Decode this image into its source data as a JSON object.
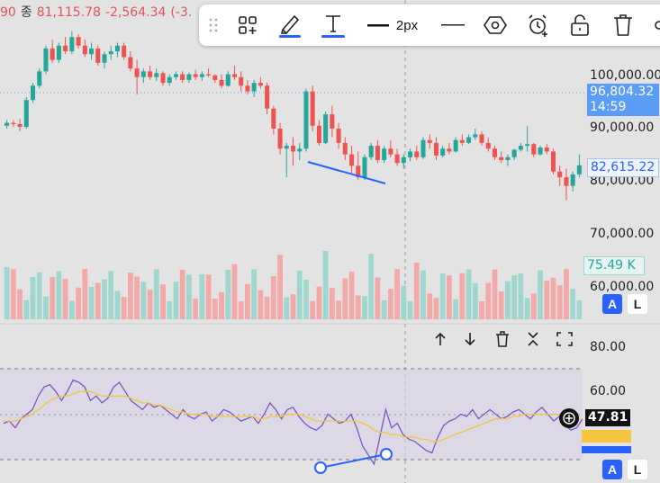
{
  "header": {
    "ohlc_partial": "90",
    "close_label": "종",
    "close_value": "81,115.78",
    "change_value": "-2,564.34",
    "change_pct_partial": "(-3."
  },
  "toolbar": {
    "width_label": "2px",
    "icons": [
      "drag-handle-icon",
      "add-layout-icon",
      "brush-icon",
      "text-tool-icon",
      "line-style-icon",
      "line-icon",
      "hexagon-icon",
      "alarm-add-icon",
      "unlock-icon",
      "trash-icon",
      "link-icon"
    ],
    "line_color": "#2962ff"
  },
  "price_axis": {
    "labels": [
      "100,000.00",
      "90,000.00",
      "80,000.00",
      "70,000.00",
      "60,000.00"
    ],
    "current_price": "96,804.32",
    "countdown": "14:59",
    "hover_price": "82,615.22",
    "volume_label": "75.49 K",
    "auto_label": "A",
    "log_label": "L"
  },
  "rsi_pane": {
    "axis_labels": [
      "80.00",
      "60.00"
    ],
    "current_value": "47.81",
    "buttons": [
      "move-up-icon",
      "move-down-icon",
      "delete-pane-icon",
      "collapse-pane-icon",
      "maximize-pane-icon"
    ],
    "auto_label": "A",
    "log_label": "L"
  },
  "colors": {
    "up": "#26a69a",
    "down": "#ef5350",
    "rsi_line": "#7e57c2",
    "rsi_ma": "#f5c542",
    "trend": "#2962ff",
    "band": "#d9d3e6"
  },
  "chart_data": {
    "type": "candlestick",
    "price_range": [
      60000,
      104000
    ],
    "candles": [
      [
        88000,
        89000,
        87500,
        88500
      ],
      [
        88500,
        89000,
        87800,
        88300
      ],
      [
        88300,
        89200,
        87000,
        87800
      ],
      [
        87800,
        93000,
        87500,
        92500
      ],
      [
        92500,
        95500,
        92000,
        95000
      ],
      [
        95000,
        98000,
        94500,
        97500
      ],
      [
        97500,
        102000,
        97000,
        101500
      ],
      [
        101500,
        103000,
        99000,
        99500
      ],
      [
        99500,
        102500,
        99000,
        102000
      ],
      [
        102000,
        103500,
        100500,
        101000
      ],
      [
        101000,
        104500,
        100500,
        103500
      ],
      [
        103500,
        104000,
        101500,
        102000
      ],
      [
        102000,
        103000,
        100000,
        100500
      ],
      [
        100500,
        102500,
        99500,
        101500
      ],
      [
        101500,
        102000,
        98500,
        99000
      ],
      [
        99000,
        101000,
        98000,
        100500
      ],
      [
        100500,
        102000,
        99500,
        101000
      ],
      [
        101000,
        102500,
        100000,
        102000
      ],
      [
        102000,
        102500,
        99500,
        100000
      ],
      [
        100000,
        101000,
        97500,
        98000
      ],
      [
        98000,
        99500,
        93500,
        96500
      ],
      [
        96500,
        98000,
        95500,
        97500
      ],
      [
        97500,
        98500,
        96000,
        96500
      ],
      [
        96500,
        98000,
        95800,
        97200
      ],
      [
        97200,
        97500,
        95000,
        95500
      ],
      [
        95500,
        97000,
        95000,
        96500
      ],
      [
        96500,
        97500,
        96000,
        97000
      ],
      [
        97000,
        97500,
        95500,
        96000
      ],
      [
        96000,
        97300,
        95500,
        97000
      ],
      [
        97000,
        97800,
        96000,
        96500
      ],
      [
        96500,
        97500,
        95800,
        97000
      ],
      [
        97000,
        98000,
        96500,
        96800
      ],
      [
        96800,
        97000,
        95500,
        96000
      ],
      [
        96000,
        97000,
        94500,
        95000
      ],
      [
        95000,
        97500,
        94800,
        97000
      ],
      [
        97000,
        98500,
        96000,
        96500
      ],
      [
        96500,
        97500,
        94000,
        95000
      ],
      [
        95000,
        96000,
        93500,
        94000
      ],
      [
        94000,
        96000,
        93000,
        95500
      ],
      [
        95500,
        96500,
        94500,
        95000
      ],
      [
        95000,
        95500,
        90000,
        91000
      ],
      [
        91000,
        91500,
        86500,
        87500
      ],
      [
        87500,
        88500,
        83000,
        84000
      ],
      [
        84000,
        85000,
        79000,
        84500
      ],
      [
        84500,
        86000,
        81000,
        83500
      ],
      [
        83500,
        85000,
        82000,
        84000
      ],
      [
        84000,
        94500,
        83500,
        94000
      ],
      [
        94000,
        95000,
        87000,
        88000
      ],
      [
        88000,
        89000,
        84500,
        85000
      ],
      [
        85000,
        90500,
        84800,
        90000
      ],
      [
        90000,
        91500,
        86000,
        87500
      ],
      [
        87500,
        88500,
        84000,
        85000
      ],
      [
        85000,
        86000,
        82000,
        83000
      ],
      [
        83000,
        84500,
        79500,
        81000
      ],
      [
        81000,
        83500,
        78500,
        79000
      ],
      [
        79000,
        83000,
        78500,
        82500
      ],
      [
        82500,
        85000,
        82000,
        84500
      ],
      [
        84500,
        85500,
        81500,
        82000
      ],
      [
        82000,
        84500,
        81500,
        84000
      ],
      [
        84000,
        85500,
        82500,
        83000
      ],
      [
        83000,
        84000,
        81000,
        81500
      ],
      [
        81500,
        83000,
        80500,
        82500
      ],
      [
        82500,
        84000,
        81800,
        83500
      ],
      [
        83500,
        84500,
        82000,
        82500
      ],
      [
        82500,
        86000,
        82200,
        85500
      ],
      [
        85500,
        86500,
        84000,
        85000
      ],
      [
        85000,
        86000,
        82000,
        82800
      ],
      [
        82800,
        84500,
        82500,
        84000
      ],
      [
        84000,
        85000,
        83000,
        83500
      ],
      [
        83500,
        86000,
        83300,
        85500
      ],
      [
        85500,
        86500,
        84500,
        85000
      ],
      [
        85000,
        86500,
        84800,
        86000
      ],
      [
        86000,
        87500,
        85500,
        86500
      ],
      [
        86500,
        87000,
        84500,
        85000
      ],
      [
        85000,
        86000,
        83500,
        84000
      ],
      [
        84000,
        84500,
        82000,
        82500
      ],
      [
        82500,
        83500,
        81500,
        82000
      ],
      [
        82000,
        83000,
        81000,
        82500
      ],
      [
        82500,
        84000,
        82000,
        83800
      ],
      [
        83800,
        85000,
        83500,
        84500
      ],
      [
        84500,
        88000,
        83500,
        84800
      ],
      [
        84800,
        85000,
        82500,
        83000
      ],
      [
        83000,
        84500,
        82800,
        84200
      ],
      [
        84200,
        84800,
        83000,
        83500
      ],
      [
        83500,
        84000,
        79500,
        80000
      ],
      [
        80000,
        81000,
        77500,
        79000
      ],
      [
        79000,
        80500,
        75000,
        77500
      ],
      [
        77500,
        80000,
        76500,
        79500
      ],
      [
        79500,
        83000,
        79000,
        81100
      ]
    ],
    "volume_max_k": 150,
    "trend_line_price": [
      [
        83500,
        79500
      ]
    ],
    "rsi": {
      "range": [
        20,
        90
      ],
      "bands": [
        70,
        30
      ],
      "mid": 50,
      "values": [
        46,
        47,
        44,
        48,
        50,
        52,
        58,
        62,
        63,
        60,
        56,
        60,
        65,
        64,
        62,
        56,
        58,
        55,
        57,
        62,
        64,
        60,
        56,
        54,
        52,
        55,
        53,
        54,
        52,
        50,
        48,
        52,
        49,
        48,
        50,
        51,
        47,
        49,
        52,
        51,
        49,
        47,
        48,
        49,
        46,
        50,
        55,
        52,
        48,
        52,
        53,
        49,
        46,
        44,
        43,
        45,
        50,
        48,
        46,
        47,
        50,
        44,
        36,
        32,
        28,
        40,
        52,
        44,
        46,
        41,
        39,
        38,
        36,
        34,
        33,
        40,
        45,
        47,
        48,
        50,
        49,
        52,
        48,
        50,
        52,
        50,
        48,
        49,
        51,
        52,
        50,
        48,
        51,
        53,
        50,
        47,
        49,
        45,
        43,
        44,
        48
      ],
      "ma": [
        47,
        47,
        47,
        48,
        49,
        50,
        52,
        54,
        56,
        57,
        58,
        58,
        59,
        60,
        60,
        60,
        59,
        58,
        58,
        58,
        58,
        58,
        57,
        56,
        55,
        55,
        54,
        54,
        53,
        52,
        51,
        51,
        50,
        50,
        50,
        50,
        49,
        49,
        49,
        49,
        49,
        49,
        49,
        49,
        48,
        48,
        49,
        49,
        49,
        50,
        50,
        50,
        49,
        48,
        47,
        47,
        47,
        47,
        47,
        47,
        47,
        47,
        46,
        45,
        43,
        42,
        42,
        41,
        41,
        40,
        40,
        40,
        39,
        39,
        38,
        38,
        39,
        40,
        41,
        42,
        43,
        44,
        45,
        46,
        47,
        48,
        48,
        48,
        49,
        49,
        50,
        50,
        50,
        50,
        50,
        50,
        50,
        49,
        49,
        48,
        48
      ]
    }
  }
}
